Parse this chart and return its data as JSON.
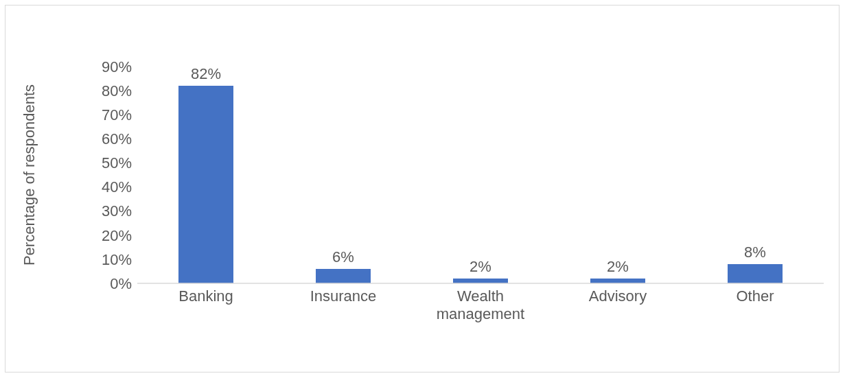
{
  "chart_data": {
    "type": "bar",
    "ylabel": "Percentage of respondents",
    "categories": [
      "Banking",
      "Insurance",
      "Wealth management",
      "Advisory",
      "Other"
    ],
    "values": [
      82,
      6,
      2,
      2,
      8
    ],
    "color": "#4472c4",
    "value_labels": [
      "82%",
      "6%",
      "2%",
      "2%",
      "8%"
    ],
    "ylim": [
      0,
      90
    ],
    "yticks": [
      {
        "value": 0,
        "label": "0%"
      },
      {
        "value": 10,
        "label": "10%"
      },
      {
        "value": 20,
        "label": "20%"
      },
      {
        "value": 30,
        "label": "30%"
      },
      {
        "value": 40,
        "label": "40%"
      },
      {
        "value": 50,
        "label": "50%"
      },
      {
        "value": 60,
        "label": "60%"
      },
      {
        "value": 70,
        "label": "70%"
      },
      {
        "value": 80,
        "label": "80%"
      },
      {
        "value": 90,
        "label": "90%"
      }
    ],
    "grid": false,
    "legend": false
  }
}
